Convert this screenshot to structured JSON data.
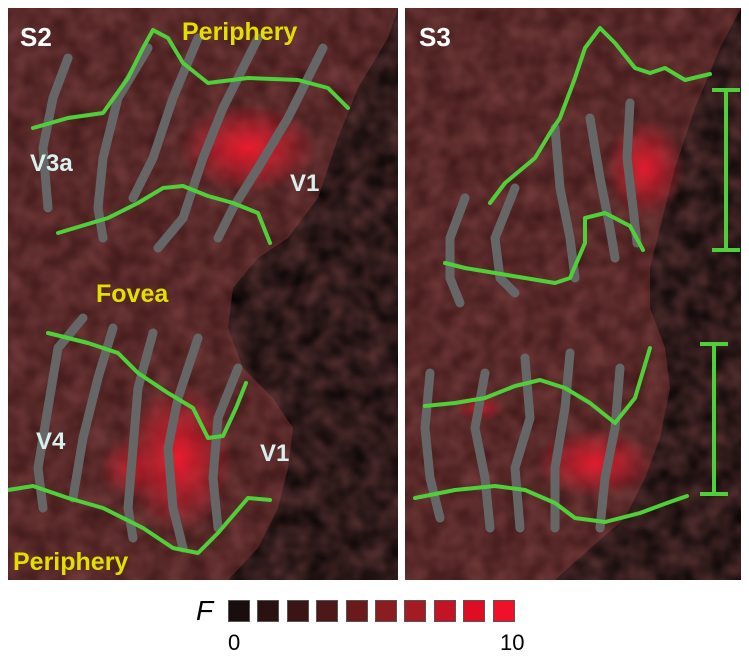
{
  "panels": [
    {
      "label": "S2",
      "regions": {
        "periphery_top": "Periphery",
        "v3a": "V3a",
        "v1_upper": "V1",
        "fovea": "Fovea",
        "v4": "V4",
        "v1_lower": "V1",
        "periphery_bottom": "Periphery"
      }
    },
    {
      "label": "S3"
    }
  ],
  "colorbar": {
    "variable": "F",
    "min_label": "0",
    "max_label": "10",
    "colors": [
      "#1a0d0d",
      "#2a1212",
      "#3b1515",
      "#4f1818",
      "#6b1a1c",
      "#891d21",
      "#a51b24",
      "#c31425",
      "#dd0d24",
      "#f0102a"
    ]
  },
  "colors": {
    "boundary": "#4fcf3a",
    "isoecc": "#666666",
    "brain": "#3a1414",
    "activation": "#e3122a"
  }
}
